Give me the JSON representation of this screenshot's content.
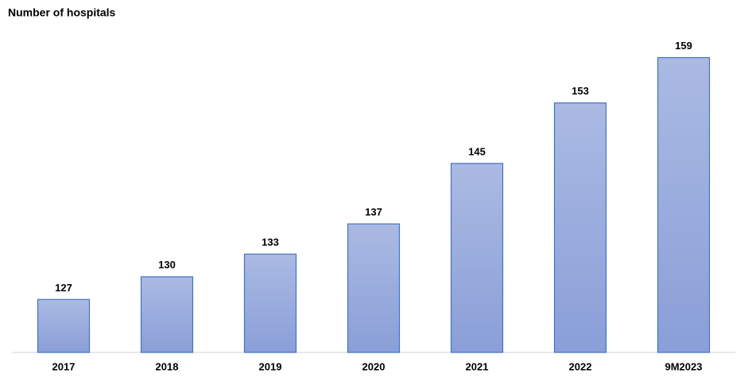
{
  "chart_data": {
    "type": "bar",
    "title": "Number of hospitals",
    "categories": [
      "2017",
      "2018",
      "2019",
      "2020",
      "2021",
      "2022",
      "9M2023"
    ],
    "values": [
      127,
      130,
      133,
      137,
      145,
      153,
      159
    ],
    "color": "#8a9fd8",
    "ylim": [
      120,
      160
    ]
  }
}
